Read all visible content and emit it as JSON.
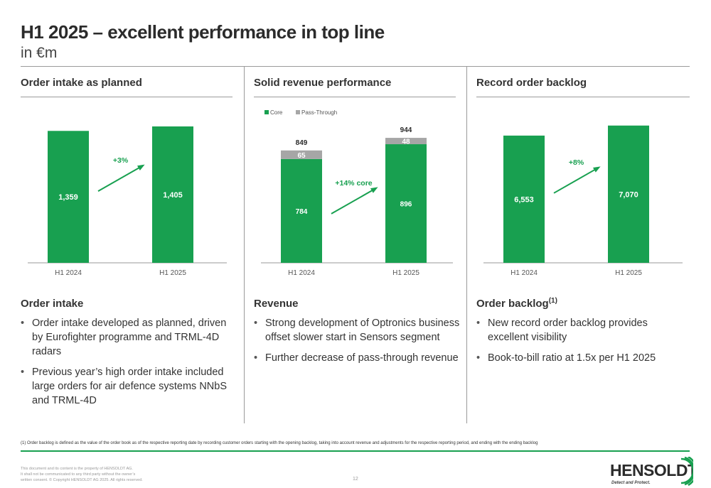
{
  "header": {
    "title": "H1 2025 – excellent performance in top line",
    "subtitle": "in €m"
  },
  "colors": {
    "green": "#18a050",
    "grey": "#a6a6a6",
    "dark": "#2b2b2b"
  },
  "panels": [
    {
      "heading": "Order intake as planned",
      "section_title": "Order intake",
      "section_sup": "",
      "bullets": [
        "Order intake developed as planned, driven by Eurofighter programme and TRML-4D radars",
        "Previous year’s high order intake included large orders for air defence systems NNbS and TRML-4D"
      ]
    },
    {
      "heading": "Solid revenue performance",
      "section_title": "Revenue",
      "section_sup": "",
      "bullets": [
        "Strong development of Optronics business offset slower start in Sensors segment",
        "Further decrease of pass-through revenue"
      ]
    },
    {
      "heading": "Record order backlog",
      "section_title": "Order backlog",
      "section_sup": "(1)",
      "bullets": [
        "New record order backlog provides excellent visibility",
        "Book-to-bill ratio at 1.5x per H1 2025"
      ]
    }
  ],
  "chart_data": [
    {
      "type": "bar",
      "categories": [
        "H1 2024",
        "H1 2025"
      ],
      "values": [
        1359,
        1405
      ],
      "value_labels": [
        "1,359",
        "1,405"
      ],
      "growth_label": "+3%",
      "ylim": [
        0,
        1500
      ]
    },
    {
      "type": "bar",
      "stacked": true,
      "categories": [
        "H1 2024",
        "H1 2025"
      ],
      "series": [
        {
          "name": "Core",
          "values": [
            784,
            896
          ],
          "labels": [
            "784",
            "896"
          ]
        },
        {
          "name": "Pass-Through",
          "values": [
            65,
            48
          ],
          "labels": [
            "65",
            "48"
          ]
        }
      ],
      "totals": [
        849,
        944
      ],
      "total_labels": [
        "849",
        "944"
      ],
      "legend": "top-left",
      "growth_label": "+14% core",
      "ylim": [
        0,
        1100
      ]
    },
    {
      "type": "bar",
      "categories": [
        "H1 2024",
        "H1 2025"
      ],
      "values": [
        6553,
        7070
      ],
      "value_labels": [
        "6,553",
        "7,070"
      ],
      "growth_label": "+8%",
      "ylim": [
        0,
        7500
      ]
    }
  ],
  "footer": {
    "footnote": "(1)  Order backlog is defined as the value of the order book as of the respective reporting date by recording customer orders starting with the opening backlog, taking into account revenue and adjustments for the respective reporting period, and ending with the ending backlog",
    "legal_1": "This document and its content is the property of HENSOLDT AG.",
    "legal_2": "It shall not be communicated to any third party without the owner’s",
    "legal_3": "written consent. © Copyright HENSOLDT AG 2025. All rights reserved.",
    "page_number": "12",
    "logo_text": "HENSOLDT",
    "logo_tagline": "Detect and Protect."
  }
}
